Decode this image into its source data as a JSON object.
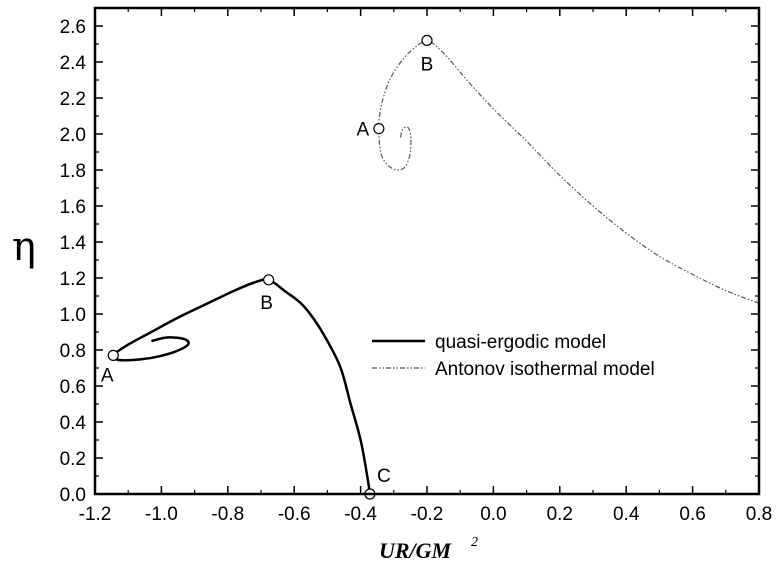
{
  "chart_data": {
    "type": "line",
    "xlabel": "UR/GM",
    "xlabel_superscript": "2",
    "ylabel": "η",
    "xlim": [
      -1.2,
      0.8
    ],
    "ylim": [
      0.0,
      2.7
    ],
    "x_ticks": [
      -1.2,
      -1.0,
      -0.8,
      -0.6,
      -0.4,
      -0.2,
      0.0,
      0.2,
      0.4,
      0.6,
      0.8
    ],
    "x_tick_labels": [
      "-1.2",
      "-1.0",
      "-0.8",
      "-0.6",
      "-0.4",
      "-0.2",
      "0.0",
      "0.2",
      "0.4",
      "0.6",
      "0.8"
    ],
    "y_ticks": [
      0.0,
      0.2,
      0.4,
      0.6,
      0.8,
      1.0,
      1.2,
      1.4,
      1.6,
      1.8,
      2.0,
      2.2,
      2.4,
      2.6
    ],
    "y_tick_labels": [
      "0.0",
      "0.2",
      "0.4",
      "0.6",
      "0.8",
      "1.0",
      "1.2",
      "1.4",
      "1.6",
      "1.8",
      "2.0",
      "2.2",
      "2.4",
      "2.6"
    ],
    "grid": false,
    "legend_position": "center-right",
    "series": [
      {
        "name": "quasi-ergodic model",
        "style": "solid",
        "color": "#000000",
        "points": [
          [
            -0.372,
            0.0
          ],
          [
            -0.38,
            0.1
          ],
          [
            -0.4,
            0.3
          ],
          [
            -0.43,
            0.5
          ],
          [
            -0.46,
            0.7
          ],
          [
            -0.5,
            0.85
          ],
          [
            -0.54,
            0.97
          ],
          [
            -0.58,
            1.06
          ],
          [
            -0.63,
            1.13
          ],
          [
            -0.677,
            1.19
          ],
          [
            -0.72,
            1.175
          ],
          [
            -0.78,
            1.13
          ],
          [
            -0.86,
            1.06
          ],
          [
            -0.95,
            0.98
          ],
          [
            -1.03,
            0.9
          ],
          [
            -1.1,
            0.83
          ],
          [
            -1.145,
            0.77
          ],
          [
            -1.13,
            0.745
          ],
          [
            -1.08,
            0.745
          ],
          [
            -1.02,
            0.76
          ],
          [
            -0.96,
            0.79
          ],
          [
            -0.92,
            0.83
          ],
          [
            -0.93,
            0.86
          ],
          [
            -0.98,
            0.87
          ],
          [
            -1.03,
            0.85
          ]
        ],
        "markers": [
          {
            "label": "A",
            "x": -1.145,
            "y": 0.77
          },
          {
            "label": "B",
            "x": -0.677,
            "y": 1.19
          },
          {
            "label": "C",
            "x": -0.372,
            "y": 0.0
          }
        ]
      },
      {
        "name": "Antonov isothermal model",
        "style": "dash-dot-dot",
        "color": "#555555",
        "points": [
          [
            0.8,
            1.06
          ],
          [
            0.7,
            1.13
          ],
          [
            0.6,
            1.22
          ],
          [
            0.5,
            1.32
          ],
          [
            0.4,
            1.45
          ],
          [
            0.3,
            1.6
          ],
          [
            0.2,
            1.77
          ],
          [
            0.1,
            1.96
          ],
          [
            0.0,
            2.14
          ],
          [
            -0.08,
            2.3
          ],
          [
            -0.14,
            2.43
          ],
          [
            -0.18,
            2.5
          ],
          [
            -0.2,
            2.52
          ],
          [
            -0.23,
            2.49
          ],
          [
            -0.27,
            2.42
          ],
          [
            -0.31,
            2.31
          ],
          [
            -0.335,
            2.18
          ],
          [
            -0.345,
            2.07
          ],
          [
            -0.345,
            2.03
          ],
          [
            -0.34,
            1.9
          ],
          [
            -0.32,
            1.83
          ],
          [
            -0.29,
            1.8
          ],
          [
            -0.265,
            1.82
          ],
          [
            -0.25,
            1.9
          ],
          [
            -0.25,
            2.0
          ],
          [
            -0.26,
            2.04
          ],
          [
            -0.275,
            2.02
          ],
          [
            -0.28,
            1.97
          ]
        ],
        "markers": [
          {
            "label": "A",
            "x": -0.345,
            "y": 2.03
          },
          {
            "label": "B",
            "x": -0.2,
            "y": 2.52
          }
        ]
      }
    ]
  }
}
